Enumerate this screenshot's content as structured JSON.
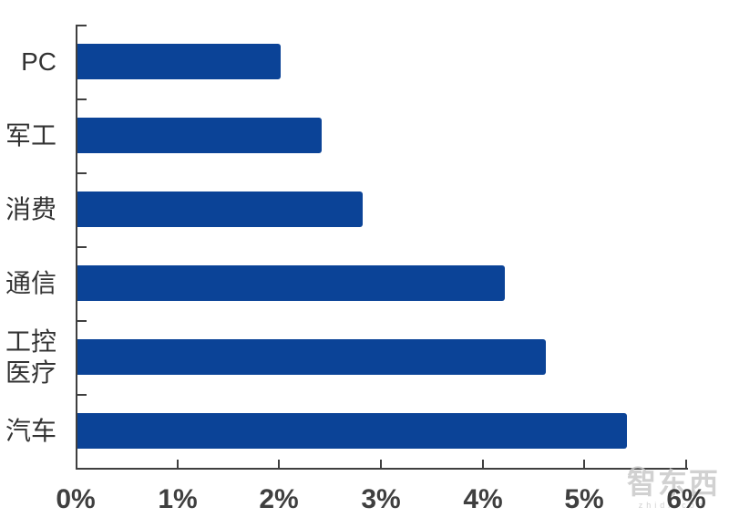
{
  "chart_data": {
    "type": "bar",
    "orientation": "horizontal",
    "title": "",
    "categories": [
      "PC",
      "军工",
      "消费",
      "通信",
      "工控\n医疗",
      "汽车"
    ],
    "values": [
      2.0,
      2.4,
      2.8,
      4.2,
      4.6,
      5.4
    ],
    "value_unit": "%",
    "x_tick_labels": [
      "0%",
      "1%",
      "2%",
      "3%",
      "4%",
      "5%",
      "6%"
    ],
    "xlim": [
      0,
      6
    ],
    "grid": false,
    "legend": false,
    "bar_color": "#0B4397",
    "axis_color": "#3F3F3F",
    "label_color": "#333333",
    "watermark_color": "#C9C9C9"
  },
  "watermark": {
    "logo_text": "智东西",
    "domain_text": "zhidx.com"
  }
}
